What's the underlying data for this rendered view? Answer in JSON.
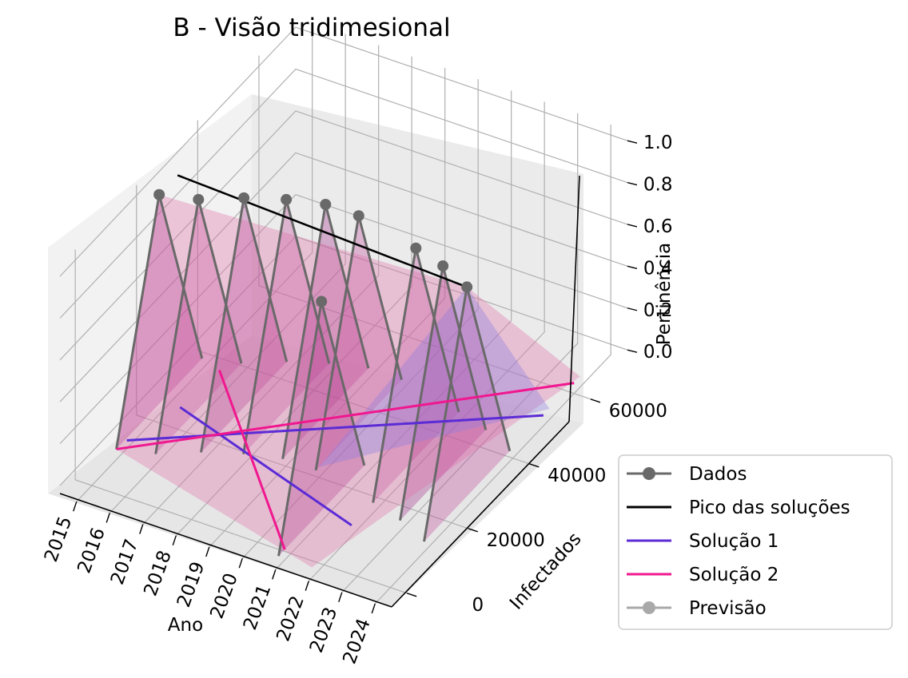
{
  "chart_data": {
    "type": "line",
    "projection": "3d",
    "title": "B - Visão tridimesional",
    "xlabel": "Ano",
    "ylabel": "Infectados",
    "zlabel": "Pertinência",
    "x_ticks": [
      "2015",
      "2016",
      "2017",
      "2018",
      "2019",
      "2020",
      "2021",
      "2022",
      "2023",
      "2024"
    ],
    "y_ticks": [
      "0",
      "20000",
      "40000",
      "60000"
    ],
    "z_ticks": [
      "0.0",
      "0.2",
      "0.4",
      "0.6",
      "0.8",
      "1.0"
    ],
    "xlim": [
      2014.5,
      2024.5
    ],
    "ylim": [
      -5000,
      72000
    ],
    "zlim": [
      -0.05,
      1.05
    ],
    "grid": true,
    "legend_position": "lower right, outside",
    "series": [
      {
        "name": "Dados",
        "color": "#696969",
        "marker": "circle",
        "points": [
          {
            "x": 2015,
            "y": 22000,
            "z": 1.0
          },
          {
            "x": 2016,
            "y": 24000,
            "z": 1.0
          },
          {
            "x": 2017,
            "y": 28000,
            "z": 1.0
          },
          {
            "x": 2018,
            "y": 31000,
            "z": 1.0
          },
          {
            "x": 2019,
            "y": 33000,
            "z": 1.0
          },
          {
            "x": 2020,
            "y": 33000,
            "z": 1.0
          },
          {
            "x": 2021,
            "y": 10000,
            "z": 1.0
          },
          {
            "x": 2022,
            "y": 30000,
            "z": 1.0
          },
          {
            "x": 2023,
            "y": 28000,
            "z": 1.0
          },
          {
            "x": 2024,
            "y": 25000,
            "z": 1.0
          }
        ]
      },
      {
        "name": "Pico das soluções",
        "color": "#000000"
      },
      {
        "name": "Solução 1",
        "color": "#5b2bd6"
      },
      {
        "name": "Solução 2",
        "color": "#f0178f"
      },
      {
        "name": "Previsão",
        "color": "#a9a9a9",
        "marker": "circle"
      }
    ]
  }
}
